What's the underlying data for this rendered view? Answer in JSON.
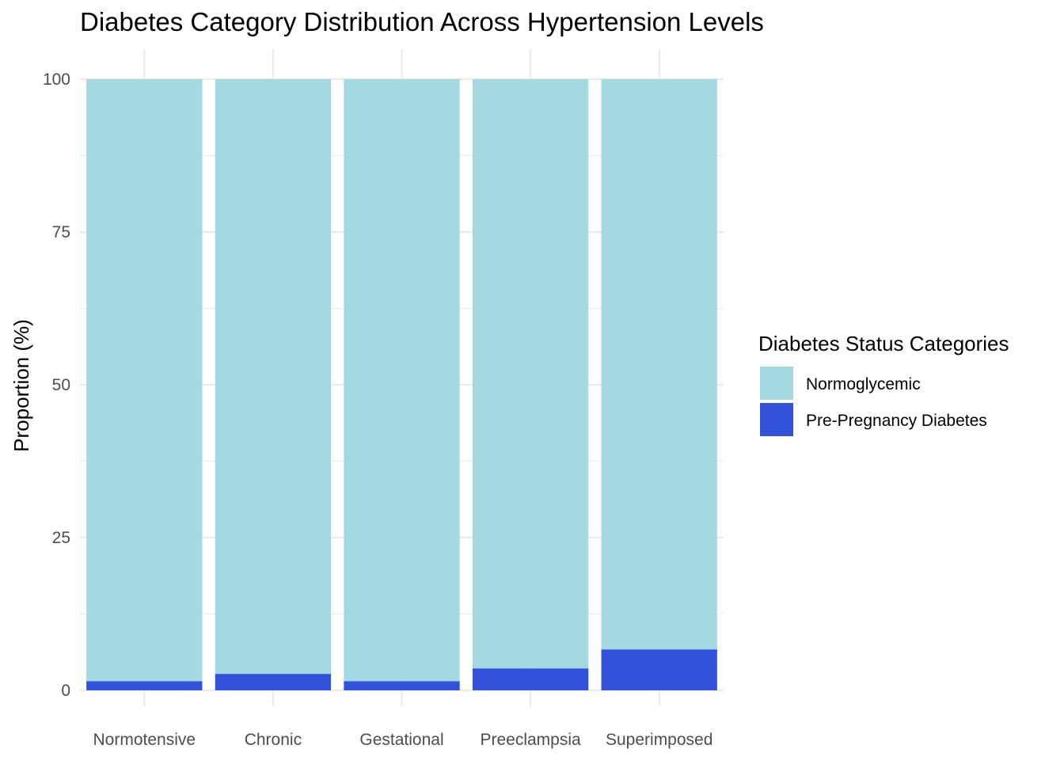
{
  "chart_data": {
    "type": "bar",
    "stacked": true,
    "title": "Diabetes Category Distribution Across Hypertension Levels",
    "xlabel": "",
    "ylabel": "Proportion (%)",
    "categories": [
      "Normotensive",
      "Chronic",
      "Gestational",
      "Preeclampsia",
      "Superimposed"
    ],
    "series": [
      {
        "name": "Normoglycemic",
        "color": "#a5d9e1",
        "values": [
          98.5,
          97.3,
          98.5,
          96.4,
          93.3
        ]
      },
      {
        "name": "Pre-Pregnancy Diabetes",
        "color": "#3451dc",
        "values": [
          1.5,
          2.7,
          1.5,
          3.6,
          6.7
        ]
      }
    ],
    "ylim": [
      0,
      100
    ],
    "yticks": [
      "0",
      "25",
      "50",
      "75",
      "100"
    ],
    "grid": true,
    "legend": {
      "title": "Diabetes Status Categories",
      "position": "right"
    }
  }
}
